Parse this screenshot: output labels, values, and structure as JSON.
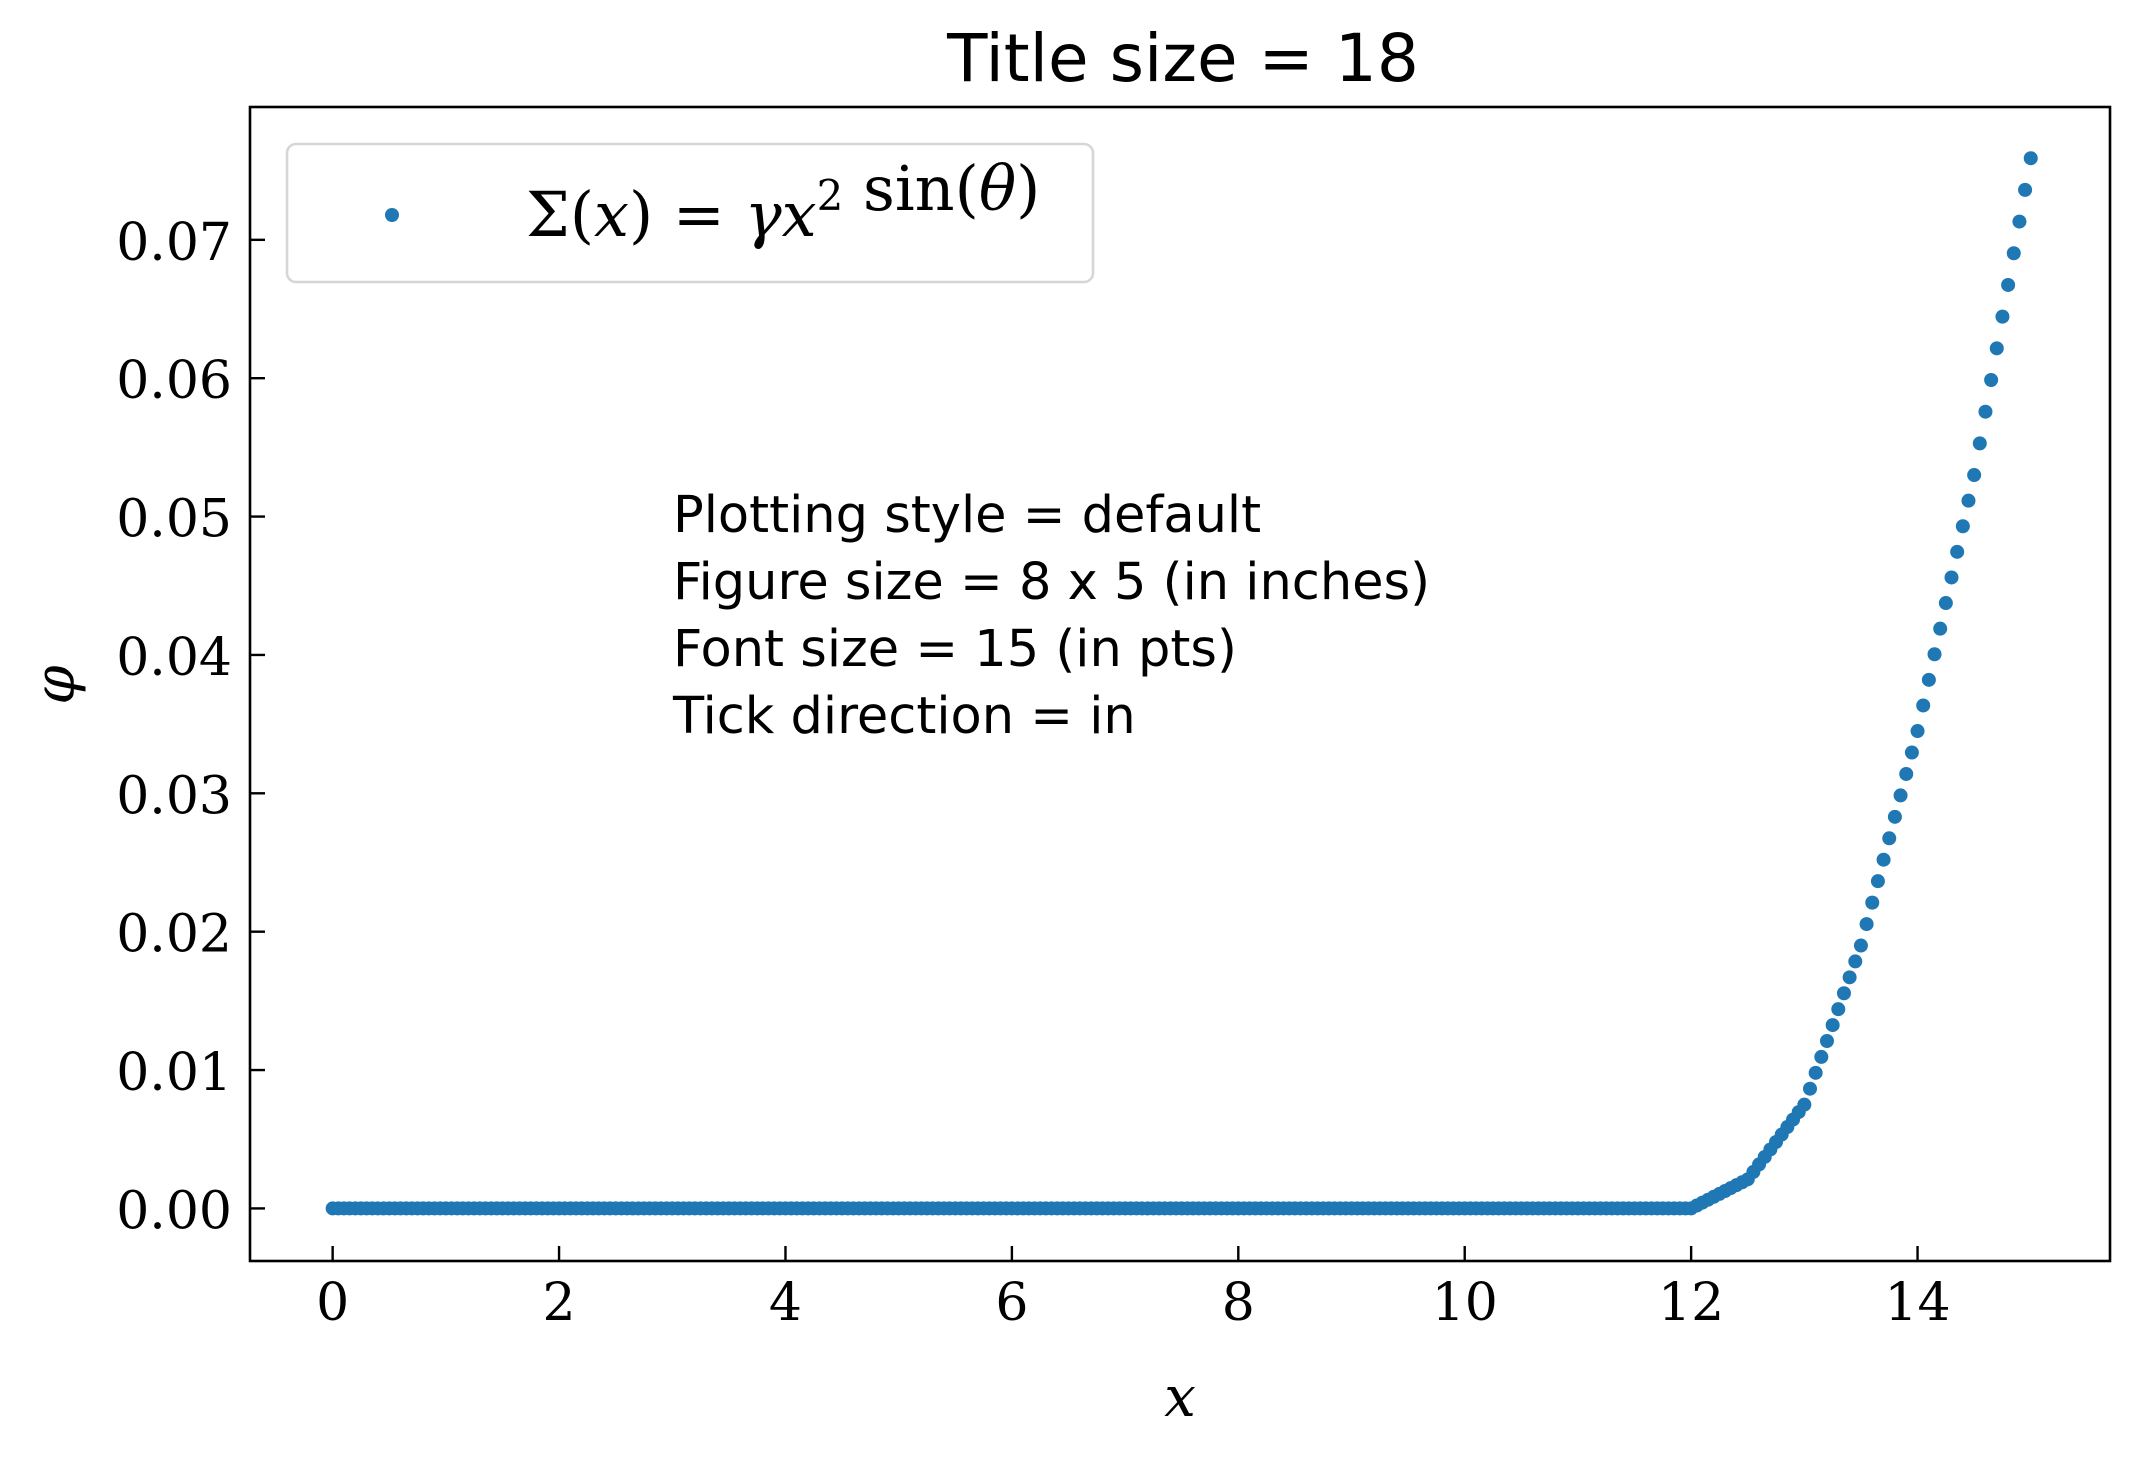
{
  "figure": {
    "title": "Title size = 18",
    "annotation_lines": [
      "Plotting style = default",
      "Figure size = 8 x 5 (in inches)",
      "Font size = 15 (in pts)",
      "Tick direction = in"
    ],
    "xlabel": "x",
    "ylabel": "φ",
    "legend": {
      "label": "Σ(x) = γx² sin(θ)",
      "parts": [
        {
          "t": "Σ(",
          "it": false
        },
        {
          "t": "x",
          "it": true
        },
        {
          "t": ") = ",
          "it": false
        },
        {
          "t": "γx",
          "it": true
        },
        {
          "t": "2",
          "it": false,
          "sup": true
        },
        {
          "t": " sin(",
          "it": false
        },
        {
          "t": "θ",
          "it": true
        },
        {
          "t": ")",
          "it": false
        }
      ]
    },
    "colors": {
      "marker": "#1f77b4",
      "axes": "#000000",
      "legend_border": "#d6d6d6",
      "background": "#ffffff"
    },
    "xticks": [
      "0",
      "2",
      "4",
      "6",
      "8",
      "10",
      "12",
      "14"
    ],
    "yticks": [
      "0.00",
      "0.01",
      "0.02",
      "0.03",
      "0.04",
      "0.05",
      "0.06",
      "0.07"
    ]
  },
  "chart_data": {
    "type": "scatter",
    "title": "Title size = 18",
    "xlabel": "x",
    "ylabel": "φ",
    "xlim": [
      -0.73,
      15.7
    ],
    "ylim": [
      -0.0038,
      0.0796
    ],
    "xticks": [
      0,
      2,
      4,
      6,
      8,
      10,
      12,
      14
    ],
    "yticks": [
      0.0,
      0.01,
      0.02,
      0.03,
      0.04,
      0.05,
      0.06,
      0.07
    ],
    "tick_direction": "in",
    "grid": false,
    "legend_position": "upper left",
    "series": [
      {
        "name": "Σ(x) = γx² sin(θ)",
        "marker": "o",
        "color": "#1f77b4",
        "x_range": [
          0,
          15
        ],
        "n_points": 301,
        "description": "y ≈ 0 for x ≤ 12, then rises roughly as 0.0085·(x−12)² to ≈0.076 at x = 15",
        "sample_points": [
          {
            "x": 0,
            "y": 0.0
          },
          {
            "x": 2,
            "y": 0.0
          },
          {
            "x": 4,
            "y": 0.0
          },
          {
            "x": 6,
            "y": 0.0
          },
          {
            "x": 8,
            "y": 0.0
          },
          {
            "x": 10,
            "y": 0.0
          },
          {
            "x": 12,
            "y": 0.0
          },
          {
            "x": 12.5,
            "y": 0.0021
          },
          {
            "x": 13,
            "y": 0.0075
          },
          {
            "x": 13.5,
            "y": 0.019
          },
          {
            "x": 14,
            "y": 0.0345
          },
          {
            "x": 14.5,
            "y": 0.053
          },
          {
            "x": 15,
            "y": 0.0759
          }
        ]
      }
    ]
  }
}
